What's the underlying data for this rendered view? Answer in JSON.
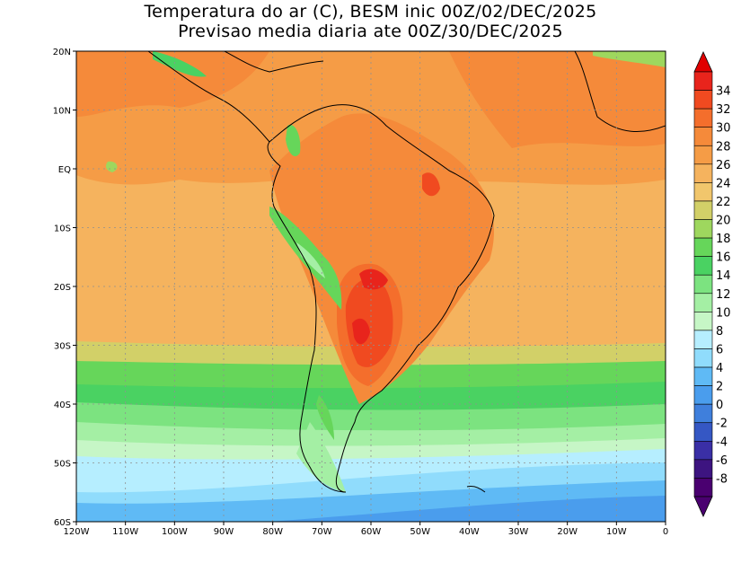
{
  "title": "Temperatura do ar (C), BESM inic 00Z/02/DEC/2025",
  "subtitle": "Previsao media diaria ate 00Z/30/DEC/2025",
  "map": {
    "lon_range": [
      -120,
      0
    ],
    "lat_range": [
      -60,
      20
    ],
    "x_ticks": [
      {
        "lon": -120,
        "label": "120W"
      },
      {
        "lon": -110,
        "label": "110W"
      },
      {
        "lon": -100,
        "label": "100W"
      },
      {
        "lon": -90,
        "label": "90W"
      },
      {
        "lon": -80,
        "label": "80W"
      },
      {
        "lon": -70,
        "label": "70W"
      },
      {
        "lon": -60,
        "label": "60W"
      },
      {
        "lon": -50,
        "label": "50W"
      },
      {
        "lon": -40,
        "label": "40W"
      },
      {
        "lon": -30,
        "label": "30W"
      },
      {
        "lon": -20,
        "label": "20W"
      },
      {
        "lon": -10,
        "label": "10W"
      },
      {
        "lon": 0,
        "label": "0"
      }
    ],
    "y_ticks": [
      {
        "lat": 20,
        "label": "20N"
      },
      {
        "lat": 10,
        "label": "10N"
      },
      {
        "lat": 0,
        "label": "EQ"
      },
      {
        "lat": -10,
        "label": "10S"
      },
      {
        "lat": -20,
        "label": "20S"
      },
      {
        "lat": -30,
        "label": "30S"
      },
      {
        "lat": -40,
        "label": "40S"
      },
      {
        "lat": -50,
        "label": "50S"
      },
      {
        "lat": -60,
        "label": "60S"
      }
    ],
    "grid": "dotted"
  },
  "colorbar": {
    "levels": [
      34,
      32,
      30,
      28,
      26,
      24,
      22,
      20,
      18,
      16,
      14,
      12,
      10,
      8,
      6,
      4,
      2,
      0,
      -2,
      -4,
      -6,
      -8
    ],
    "colors": [
      "#e8241c",
      "#f04a20",
      "#f46e2c",
      "#f58a3a",
      "#f59c46",
      "#f5b35e",
      "#f1c66c",
      "#d2d068",
      "#9ed75e",
      "#66d65a",
      "#4ad262",
      "#7ce380",
      "#a4efa4",
      "#c6f6c6",
      "#b6eeff",
      "#90dcfc",
      "#5fbaf5",
      "#4a9ded",
      "#3f7fdc",
      "#3557c4",
      "#3a2fa6",
      "#3d1480",
      "#4a0070"
    ],
    "top_arrow_color": "#e00000",
    "bottom_arrow_color": "#4a0070"
  }
}
